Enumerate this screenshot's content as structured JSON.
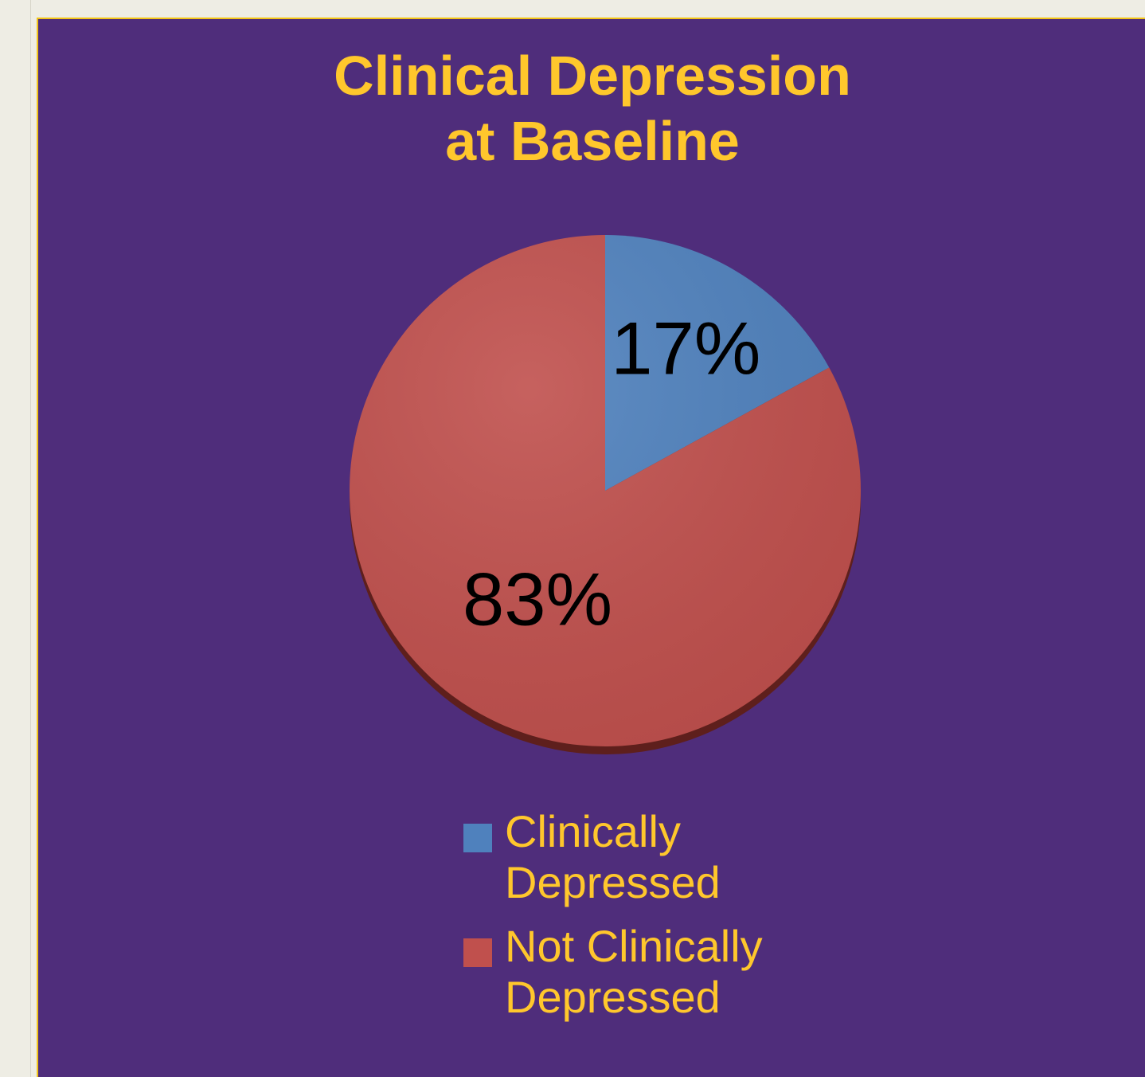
{
  "chart_data": {
    "type": "pie",
    "title": [
      "Clinical Depression",
      "at Baseline"
    ],
    "slices": [
      {
        "label": "Clinically Depressed",
        "legend_lines": [
          "Clinically",
          "Depressed"
        ],
        "value": 17,
        "display": "17%",
        "color": "#4f81bd"
      },
      {
        "label": "Not Clinically Depressed",
        "legend_lines": [
          "Not Clinically",
          "Depressed"
        ],
        "value": 83,
        "display": "83%",
        "color": "#c0504d"
      }
    ],
    "legend_position": "bottom",
    "background_color": "#4f2d7b",
    "text_color": "#ffc72c"
  }
}
